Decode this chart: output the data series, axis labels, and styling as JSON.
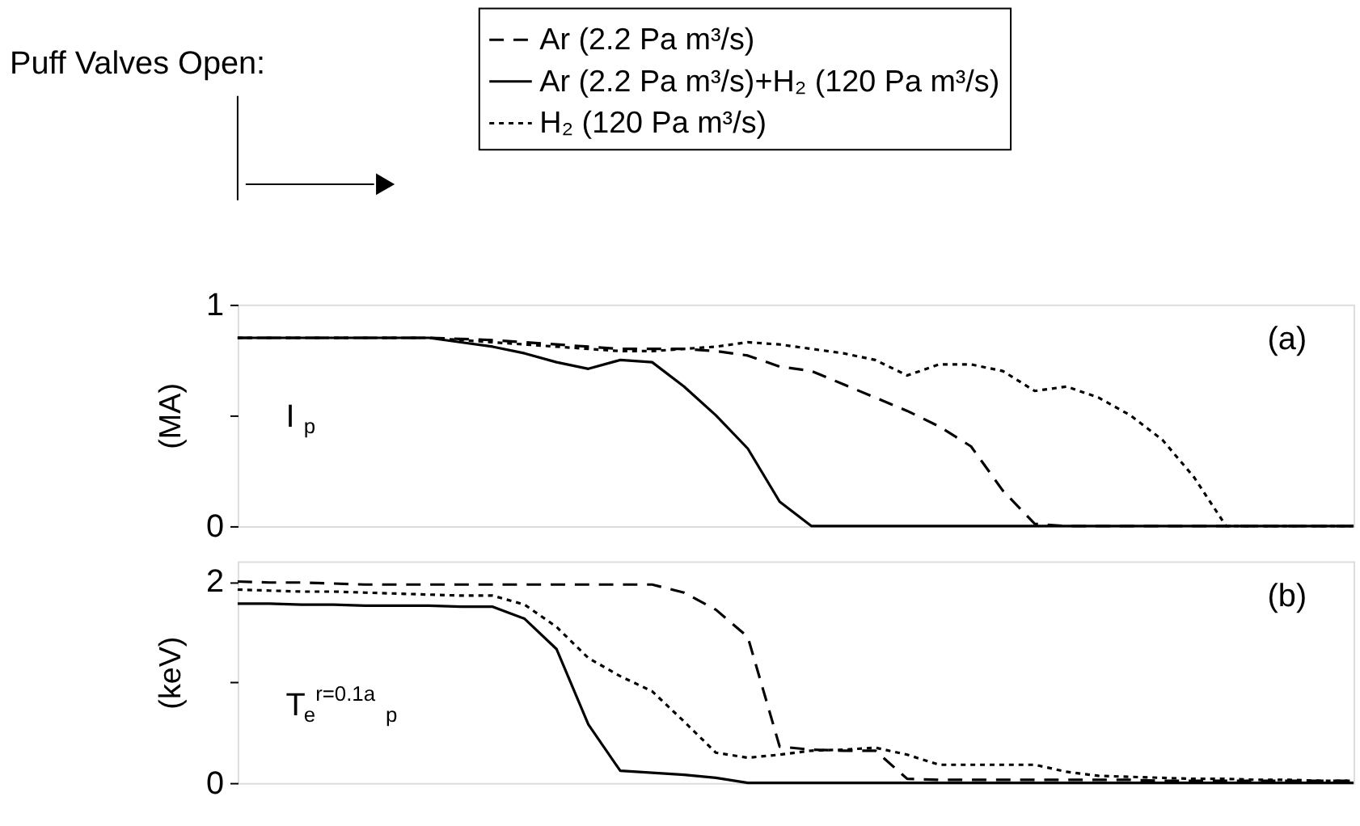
{
  "chart_data": [
    {
      "type": "line",
      "ylabel": "(MA)",
      "categories": [
        null,
        null,
        null,
        null,
        null,
        null,
        null,
        null,
        null,
        null,
        null,
        null,
        null,
        null,
        null,
        null,
        null,
        null,
        null,
        null,
        null,
        null,
        null,
        null,
        null,
        null,
        null,
        null,
        null,
        null,
        null,
        null,
        null,
        null,
        null,
        null
      ],
      "ylim": [
        0,
        1
      ],
      "yticks": [
        0,
        {
          "value": 0.5,
          "label": null
        },
        1
      ],
      "tick_labels": "y",
      "grid": false,
      "legend": "top",
      "annotations": [
        "Puff Valves Open:",
        "(a)",
        "I$_{p}$"
      ],
      "series": [
        {
          "name": "Ar (2.2 Pa m³/s)",
          "color": "#000000",
          "line_style": "dashed",
          "values": [
            0.85,
            0.85,
            0.85,
            0.85,
            0.85,
            0.85,
            0.85,
            0.845,
            0.84,
            0.83,
            0.82,
            0.81,
            0.8,
            0.8,
            0.8,
            0.79,
            0.77,
            0.72,
            0.7,
            0.64,
            0.58,
            0.52,
            0.45,
            0.36,
            0.16,
            0.01,
            0,
            0,
            0,
            0,
            0,
            0,
            0,
            0,
            0,
            0
          ]
        },
        {
          "name": "Ar (2.2 Pa m³/s)+H₂ (120 Pa m³/s)",
          "color": "#000000",
          "line_style": "solid",
          "values": [
            0.85,
            0.85,
            0.85,
            0.85,
            0.85,
            0.85,
            0.85,
            0.83,
            0.81,
            0.78,
            0.74,
            0.71,
            0.75,
            0.74,
            0.63,
            0.5,
            0.35,
            0.11,
            0,
            0,
            0,
            0,
            0,
            0,
            0,
            0,
            0,
            0,
            0,
            0,
            0,
            0,
            0,
            0,
            0,
            0
          ]
        },
        {
          "name": "H₂ (120 Pa  m³/s)",
          "color": "#000000",
          "line_style": "dotted",
          "values": [
            0.85,
            0.85,
            0.85,
            0.85,
            0.85,
            0.85,
            0.85,
            0.84,
            0.83,
            0.82,
            0.81,
            0.8,
            0.79,
            0.79,
            0.8,
            0.81,
            0.83,
            0.82,
            0.8,
            0.78,
            0.75,
            0.68,
            0.73,
            0.73,
            0.7,
            0.61,
            0.63,
            0.58,
            0.5,
            0.39,
            0.22,
            0,
            0,
            0,
            0,
            0
          ]
        }
      ]
    },
    {
      "type": "line",
      "ylabel": "(keV)",
      "categories": [
        null,
        null,
        null,
        null,
        null,
        null,
        null,
        null,
        null,
        null,
        null,
        null,
        null,
        null,
        null,
        null,
        null,
        null,
        null,
        null,
        null,
        null,
        null,
        null,
        null,
        null,
        null,
        null,
        null,
        null,
        null,
        null,
        null,
        null,
        null,
        null
      ],
      "ylim": [
        0,
        2.2
      ],
      "yticks": [
        0,
        {
          "value": 1,
          "label": null
        },
        2
      ],
      "tick_labels": "y",
      "grid": false,
      "annotations": [
        "(b)",
        "T$_{e}$$^{r=0.1a}$$_{p}$"
      ],
      "series": [
        {
          "color": "#000000",
          "line_style": "dashed",
          "values": [
            2.0,
            1.99,
            1.99,
            1.98,
            1.97,
            1.97,
            1.97,
            1.97,
            1.97,
            1.97,
            1.97,
            1.97,
            1.97,
            1.97,
            1.89,
            1.72,
            1.45,
            0.36,
            0.33,
            0.32,
            0.32,
            0.04,
            0.03,
            0.03,
            0.03,
            0.03,
            0.03,
            0.03,
            0.03,
            0.02,
            0.02,
            0.02,
            0.02,
            0.02,
            0.02,
            0.02
          ]
        },
        {
          "color": "#000000",
          "line_style": "solid",
          "values": [
            1.78,
            1.78,
            1.77,
            1.77,
            1.76,
            1.76,
            1.76,
            1.75,
            1.75,
            1.63,
            1.33,
            0.58,
            0.12,
            0.1,
            0.08,
            0.05,
            0,
            0,
            0,
            0,
            0,
            0,
            0,
            0,
            0,
            0,
            0,
            0,
            0,
            0,
            0,
            0,
            0,
            0,
            0,
            0
          ]
        },
        {
          "color": "#000000",
          "line_style": "dotted",
          "values": [
            1.92,
            1.91,
            1.9,
            1.9,
            1.89,
            1.88,
            1.87,
            1.86,
            1.86,
            1.77,
            1.55,
            1.24,
            1.06,
            0.91,
            0.61,
            0.3,
            0.25,
            0.28,
            0.32,
            0.33,
            0.35,
            0.28,
            0.18,
            0.18,
            0.18,
            0.18,
            0.11,
            0.07,
            0.06,
            0.05,
            0.04,
            0.04,
            0.03,
            0.03,
            0.02,
            0.02
          ]
        }
      ]
    }
  ]
}
